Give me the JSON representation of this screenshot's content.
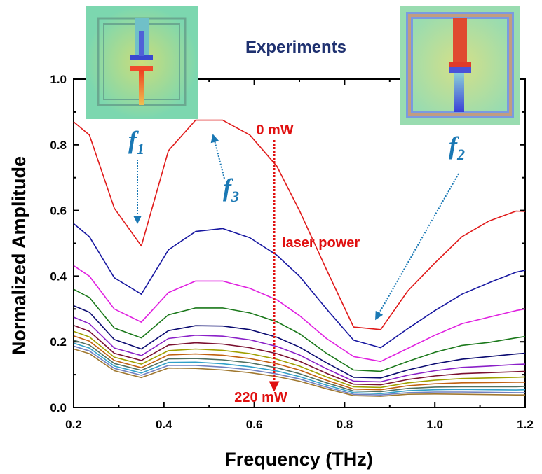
{
  "chart_data": {
    "type": "line",
    "title": "Experiments",
    "xlabel": "Frequency (THz)",
    "ylabel": "Normalized Amplitude",
    "xlim": [
      0.2,
      1.2
    ],
    "ylim": [
      0.0,
      1.0
    ],
    "xticks": [
      "0.2",
      "0.4",
      "0.6",
      "0.8",
      "1.0",
      "1.2"
    ],
    "yticks": [
      "0.0",
      "0.2",
      "0.4",
      "0.6",
      "0.8",
      "1.0"
    ],
    "grid": false,
    "x": [
      0.2,
      0.235,
      0.29,
      0.35,
      0.41,
      0.47,
      0.53,
      0.59,
      0.65,
      0.7,
      0.76,
      0.82,
      0.88,
      0.94,
      1.0,
      1.06,
      1.12,
      1.18,
      1.2
    ],
    "series": [
      {
        "color": "#e01a1a",
        "values": [
          0.87,
          0.83,
          0.607,
          0.492,
          0.782,
          0.875,
          0.875,
          0.83,
          0.735,
          0.6,
          0.42,
          0.245,
          0.237,
          0.355,
          0.44,
          0.52,
          0.568,
          0.598,
          0.597
        ]
      },
      {
        "color": "#1616a0",
        "values": [
          0.56,
          0.52,
          0.395,
          0.345,
          0.48,
          0.536,
          0.545,
          0.517,
          0.464,
          0.4,
          0.3,
          0.205,
          0.182,
          0.24,
          0.295,
          0.345,
          0.38,
          0.412,
          0.418
        ]
      },
      {
        "color": "#e020e0",
        "values": [
          0.432,
          0.4,
          0.3,
          0.26,
          0.35,
          0.385,
          0.385,
          0.363,
          0.328,
          0.28,
          0.21,
          0.155,
          0.14,
          0.18,
          0.22,
          0.255,
          0.275,
          0.295,
          0.3
        ]
      },
      {
        "color": "#1a781a",
        "values": [
          0.36,
          0.335,
          0.242,
          0.212,
          0.282,
          0.303,
          0.303,
          0.288,
          0.261,
          0.225,
          0.165,
          0.114,
          0.11,
          0.14,
          0.168,
          0.189,
          0.198,
          0.212,
          0.216
        ]
      },
      {
        "color": "#0a0a70",
        "values": [
          0.31,
          0.29,
          0.207,
          0.178,
          0.234,
          0.249,
          0.248,
          0.237,
          0.214,
          0.184,
          0.136,
          0.092,
          0.09,
          0.114,
          0.133,
          0.147,
          0.155,
          0.163,
          0.165
        ]
      },
      {
        "color": "#8a20c8",
        "values": [
          0.275,
          0.255,
          0.181,
          0.158,
          0.21,
          0.22,
          0.217,
          0.206,
          0.186,
          0.16,
          0.118,
          0.08,
          0.078,
          0.098,
          0.112,
          0.122,
          0.126,
          0.131,
          0.132
        ]
      },
      {
        "color": "#7a1030",
        "values": [
          0.25,
          0.232,
          0.165,
          0.143,
          0.19,
          0.197,
          0.193,
          0.182,
          0.164,
          0.141,
          0.104,
          0.071,
          0.069,
          0.085,
          0.096,
          0.103,
          0.106,
          0.109,
          0.11
        ]
      },
      {
        "color": "#a0a000",
        "values": [
          0.232,
          0.215,
          0.153,
          0.132,
          0.173,
          0.178,
          0.174,
          0.164,
          0.147,
          0.126,
          0.093,
          0.063,
          0.061,
          0.075,
          0.083,
          0.088,
          0.09,
          0.092,
          0.093
        ]
      },
      {
        "color": "#c06010",
        "values": [
          0.218,
          0.202,
          0.143,
          0.121,
          0.16,
          0.163,
          0.159,
          0.149,
          0.133,
          0.114,
          0.083,
          0.056,
          0.054,
          0.066,
          0.072,
          0.075,
          0.076,
          0.077,
          0.077
        ]
      },
      {
        "color": "#507060",
        "values": [
          0.205,
          0.19,
          0.134,
          0.113,
          0.148,
          0.149,
          0.145,
          0.136,
          0.121,
          0.103,
          0.075,
          0.05,
          0.048,
          0.058,
          0.062,
          0.063,
          0.063,
          0.063,
          0.064
        ]
      },
      {
        "color": "#30a0c8",
        "values": [
          0.196,
          0.181,
          0.126,
          0.105,
          0.137,
          0.138,
          0.133,
          0.124,
          0.111,
          0.094,
          0.068,
          0.045,
          0.042,
          0.051,
          0.054,
          0.055,
          0.054,
          0.053,
          0.054
        ]
      },
      {
        "color": "#7080c0",
        "values": [
          0.187,
          0.172,
          0.119,
          0.098,
          0.128,
          0.128,
          0.123,
          0.115,
          0.102,
          0.087,
          0.062,
          0.04,
          0.038,
          0.045,
          0.047,
          0.047,
          0.046,
          0.045,
          0.045
        ]
      },
      {
        "color": "#a07830",
        "values": [
          0.178,
          0.164,
          0.112,
          0.091,
          0.12,
          0.119,
          0.114,
          0.106,
          0.094,
          0.08,
          0.057,
          0.036,
          0.034,
          0.04,
          0.041,
          0.04,
          0.039,
          0.038,
          0.038
        ]
      }
    ],
    "annotations": {
      "top_power": "0 mW",
      "bottom_power": "220 mW",
      "arrow_label": "laser power",
      "f1": {
        "base": "f",
        "sub": "1"
      },
      "f2": {
        "base": "f",
        "sub": "2"
      },
      "f3": {
        "base": "f",
        "sub": "3"
      }
    }
  }
}
